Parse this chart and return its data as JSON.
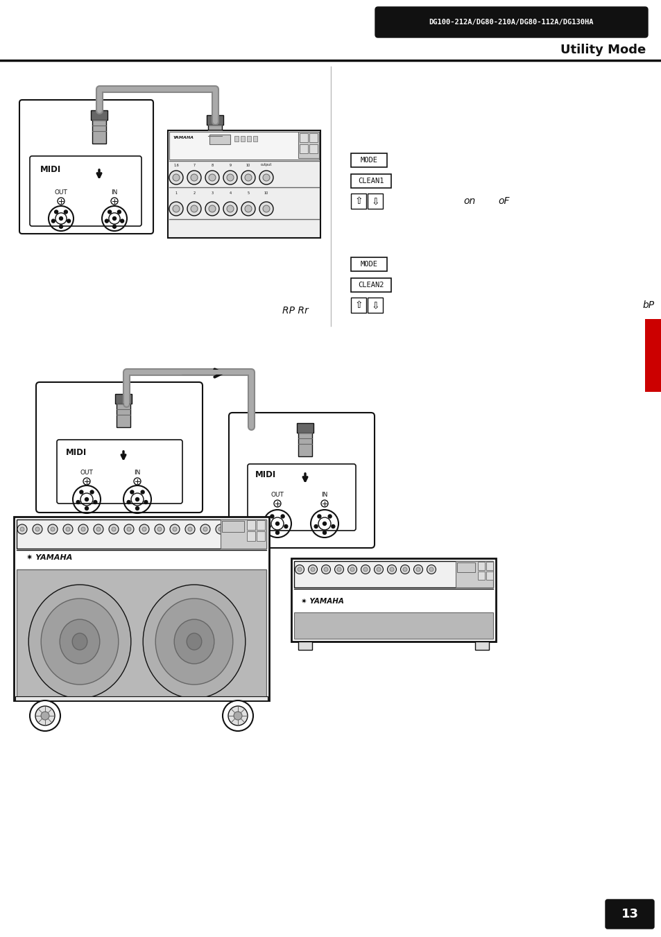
{
  "page_width": 9.54,
  "page_height": 13.51,
  "bg_color": "#ffffff",
  "dark_color": "#111111",
  "accent_color": "#cc0000",
  "gray_cable": "#888888",
  "gray_light": "#cccccc",
  "gray_mid": "#aaaaaa",
  "gray_dark": "#666666",
  "gray_body": "#d8d8d8",
  "gray_grille": "#b8b8b8",
  "model_label": "DG100-212A/DG80-210A/DG80-112A/DG130HA",
  "title_text": "Utility Mode",
  "page_number": "13",
  "mode_text": "MODE",
  "clean1_text": "CLEAN1",
  "clean2_text": "CLEAN2",
  "on_text": "on",
  "of_text": "oF",
  "rp_text": "RP Rr",
  "bp_text": "bP",
  "midi_text": "MIDI",
  "out_text": "OUT",
  "in_text": "IN"
}
